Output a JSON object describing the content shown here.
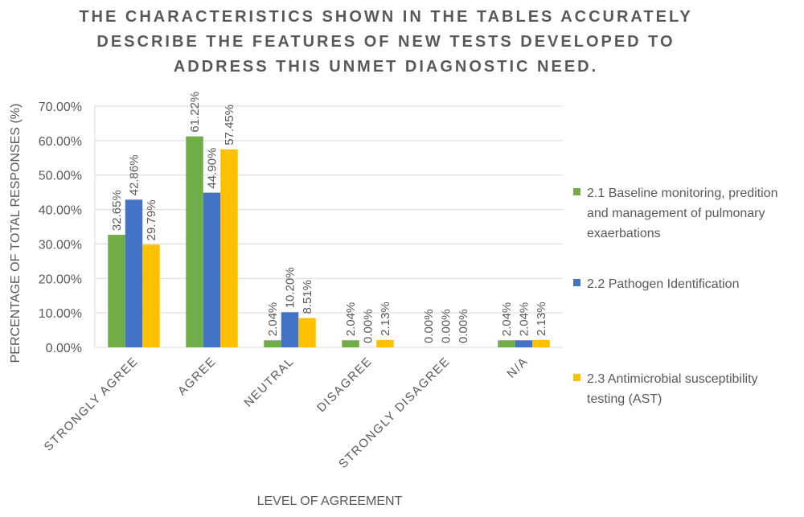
{
  "chart_data": {
    "type": "bar",
    "title": "THE CHARACTERISTICS SHOWN IN THE TABLES ACCURATELY DESCRIBE THE FEATURES OF NEW TESTS DEVELOPED TO ADDRESS THIS UNMET DIAGNOSTIC NEED.",
    "xlabel": "LEVEL OF AGREEMENT",
    "ylabel": "PERCENTAGE OF TOTAL RESPONSES (%)",
    "ylim": [
      0,
      70
    ],
    "yticks": [
      "0.00%",
      "10.00%",
      "20.00%",
      "30.00%",
      "40.00%",
      "50.00%",
      "60.00%",
      "70.00%"
    ],
    "grid": true,
    "legend_position": "right",
    "categories": [
      "STRONGLY AGREE",
      "AGREE",
      "NEUTRAL",
      "DISAGREE",
      "STRONGLY DISAGREE",
      "N/A"
    ],
    "series": [
      {
        "name": "2.1 Baseline monitoring, predition and management of pulmonary exaerbations",
        "color": "#70ad47",
        "values": [
          32.65,
          61.22,
          2.04,
          2.04,
          0.0,
          2.04
        ],
        "labels": [
          "32.65%",
          "61.22%",
          "2.04%",
          "2.04%",
          "0.00%",
          "2.04%"
        ]
      },
      {
        "name": "2.2 Pathogen Identification",
        "color": "#4472c4",
        "values": [
          42.86,
          44.9,
          10.2,
          0.0,
          0.0,
          2.04
        ],
        "labels": [
          "42.86%",
          "44.90%",
          "10.20%",
          "0.00%",
          "0.00%",
          "2.04%"
        ]
      },
      {
        "name": "2.3 Antimicrobial susceptibility testing (AST)",
        "color": "#ffc000",
        "values": [
          29.79,
          57.45,
          8.51,
          2.13,
          0.0,
          2.13
        ],
        "labels": [
          "29.79%",
          "57.45%",
          "8.51%",
          "2.13%",
          "0.00%",
          "2.13%"
        ]
      }
    ]
  }
}
